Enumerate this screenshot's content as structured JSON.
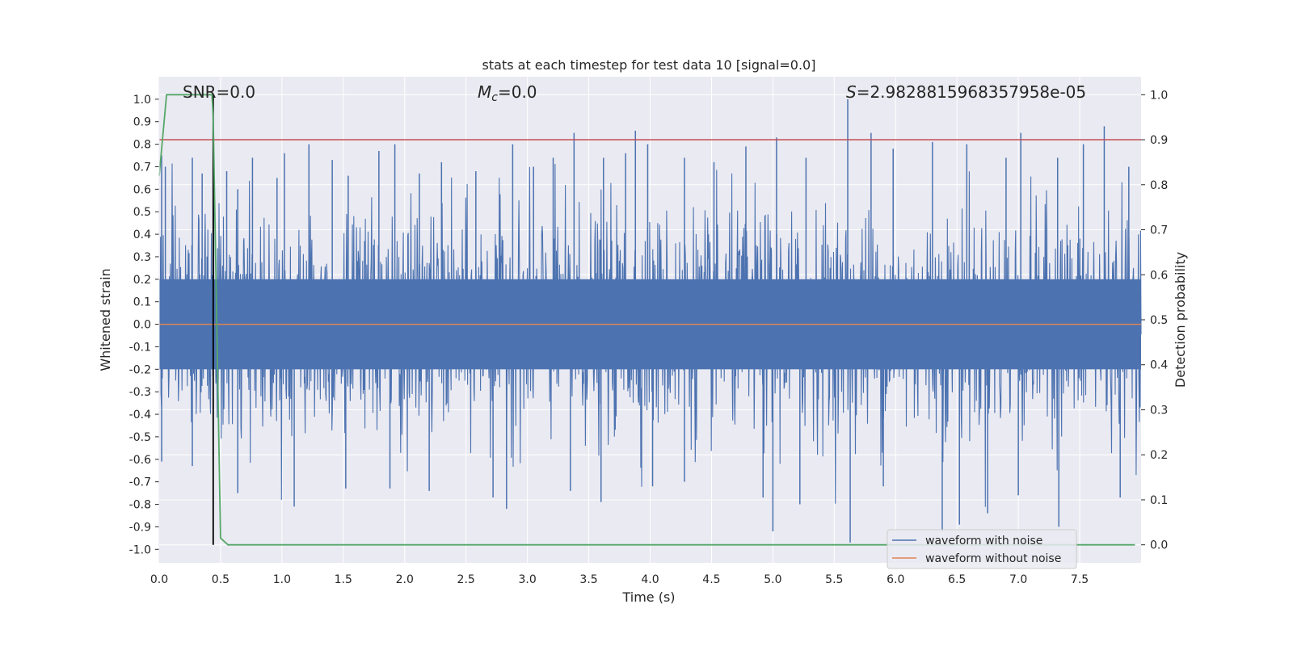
{
  "chart_data": {
    "type": "line",
    "title": "stats at each timestep for test data 10 [signal=0.0]",
    "xlabel": "Time (s)",
    "ylabel": "Whitened strain",
    "y2label": "Detection probability",
    "xlim": [
      0.0,
      8.0
    ],
    "ylim": [
      -1.06,
      1.1
    ],
    "y2lim": [
      -0.04,
      1.04
    ],
    "x_ticks": [
      0.0,
      0.5,
      1.0,
      1.5,
      2.0,
      2.5,
      3.0,
      3.5,
      4.0,
      4.5,
      5.0,
      5.5,
      6.0,
      6.5,
      7.0,
      7.5
    ],
    "x_tick_labels": [
      "0.0",
      "0.5",
      "1.0",
      "1.5",
      "2.0",
      "2.5",
      "3.0",
      "3.5",
      "4.0",
      "4.5",
      "5.0",
      "5.5",
      "6.0",
      "6.5",
      "7.0",
      "7.5"
    ],
    "y_ticks": [
      1.0,
      0.9,
      0.8,
      0.7,
      0.6,
      0.5,
      0.4,
      0.3,
      0.2,
      0.1,
      0.0,
      -0.1,
      -0.2,
      -0.3,
      -0.4,
      -0.5,
      -0.6,
      -0.7,
      -0.8,
      -0.9,
      -1.0
    ],
    "y_tick_labels": [
      "1.0",
      "0.9",
      "0.8",
      "0.7",
      "0.6",
      "0.5",
      "0.4",
      "0.3",
      "0.2",
      "0.1",
      "0.0",
      "-0.1",
      "-0.2",
      "-0.3",
      "-0.4",
      "-0.5",
      "-0.6",
      "-0.7",
      "-0.8",
      "-0.9",
      "-1.0"
    ],
    "y2_ticks": [
      1.0,
      0.9,
      0.8,
      0.7,
      0.6,
      0.5,
      0.4,
      0.3,
      0.2,
      0.1,
      0.0
    ],
    "y2_tick_labels": [
      "1.0",
      "0.9",
      "0.8",
      "0.7",
      "0.6",
      "0.5",
      "0.4",
      "0.3",
      "0.2",
      "0.1",
      "0.0"
    ],
    "annotations": {
      "snr": "SNR=0.0",
      "mc_symbol": "M",
      "mc_subscript": "c",
      "mc_value": "=0.0",
      "s_symbol": "S",
      "s_value": "=2.9828815968357958e-05"
    },
    "legend": {
      "location": "lower-right",
      "entries": [
        {
          "label": "waveform with noise",
          "color": "#4c72b0"
        },
        {
          "label": "waveform without noise",
          "color": "#dd8452"
        }
      ]
    },
    "series": [
      {
        "name": "waveform with noise",
        "axis": "left",
        "color": "#4c72b0",
        "kind": "dense noise, amplitude roughly -0.97 to 1.0"
      },
      {
        "name": "waveform without noise",
        "axis": "left",
        "color": "#dd8452",
        "value": 0.0
      },
      {
        "name": "detection probability",
        "axis": "right",
        "color": "#55a868",
        "x": [
          0.0,
          0.06,
          0.14,
          0.3,
          0.43,
          0.44,
          0.5,
          0.56,
          7.95
        ],
        "y": [
          0.82,
          1.0,
          1.0,
          1.0,
          1.0,
          0.95,
          0.015,
          0.0,
          0.0
        ]
      }
    ],
    "threshold": {
      "axis": "right",
      "value": 0.9,
      "color": "#c44e52"
    },
    "vline": {
      "x": 0.44,
      "color": "#000000"
    },
    "noise_peaks_pos": [
      [
        0.02,
        0.75
      ],
      [
        0.05,
        0.7
      ],
      [
        0.27,
        0.74
      ],
      [
        0.35,
        0.67
      ],
      [
        0.55,
        0.68
      ],
      [
        0.64,
        0.6
      ],
      [
        0.76,
        0.74
      ],
      [
        0.96,
        0.65
      ],
      [
        1.02,
        0.76
      ],
      [
        1.22,
        0.8
      ],
      [
        1.41,
        0.73
      ],
      [
        1.54,
        0.66
      ],
      [
        1.79,
        0.77
      ],
      [
        1.92,
        0.8
      ],
      [
        2.12,
        0.67
      ],
      [
        2.3,
        0.72
      ],
      [
        2.58,
        0.68
      ],
      [
        2.88,
        0.8
      ],
      [
        3.05,
        0.7
      ],
      [
        3.21,
        0.74
      ],
      [
        3.38,
        0.85
      ],
      [
        3.62,
        0.74
      ],
      [
        3.8,
        0.76
      ],
      [
        3.88,
        0.86
      ],
      [
        3.98,
        0.8
      ],
      [
        4.28,
        0.74
      ],
      [
        4.52,
        0.72
      ],
      [
        4.78,
        0.79
      ],
      [
        5.03,
        0.83
      ],
      [
        5.27,
        0.74
      ],
      [
        5.61,
        1.0
      ],
      [
        5.8,
        0.85
      ],
      [
        5.98,
        0.78
      ],
      [
        6.3,
        0.81
      ],
      [
        6.58,
        0.8
      ],
      [
        6.9,
        0.74
      ],
      [
        7.02,
        0.85
      ],
      [
        7.32,
        0.74
      ],
      [
        7.53,
        0.8
      ],
      [
        7.7,
        0.88
      ],
      [
        7.9,
        0.7
      ]
    ],
    "noise_peaks_neg": [
      [
        0.02,
        -0.61
      ],
      [
        0.27,
        -0.63
      ],
      [
        0.64,
        -0.75
      ],
      [
        1.1,
        -0.81
      ],
      [
        1.52,
        -0.73
      ],
      [
        1.88,
        -0.73
      ],
      [
        2.2,
        -0.74
      ],
      [
        2.72,
        -0.77
      ],
      [
        2.83,
        -0.82
      ],
      [
        3.35,
        -0.74
      ],
      [
        3.6,
        -0.79
      ],
      [
        4.02,
        -0.72
      ],
      [
        4.28,
        -0.7
      ],
      [
        4.92,
        -0.77
      ],
      [
        5.0,
        -0.92
      ],
      [
        5.22,
        -0.8
      ],
      [
        5.63,
        -0.97
      ],
      [
        5.9,
        -0.72
      ],
      [
        6.38,
        -0.92
      ],
      [
        6.52,
        -0.89
      ],
      [
        6.75,
        -0.84
      ],
      [
        7.0,
        -0.76
      ],
      [
        7.33,
        -0.9
      ],
      [
        7.83,
        -0.77
      ]
    ]
  }
}
